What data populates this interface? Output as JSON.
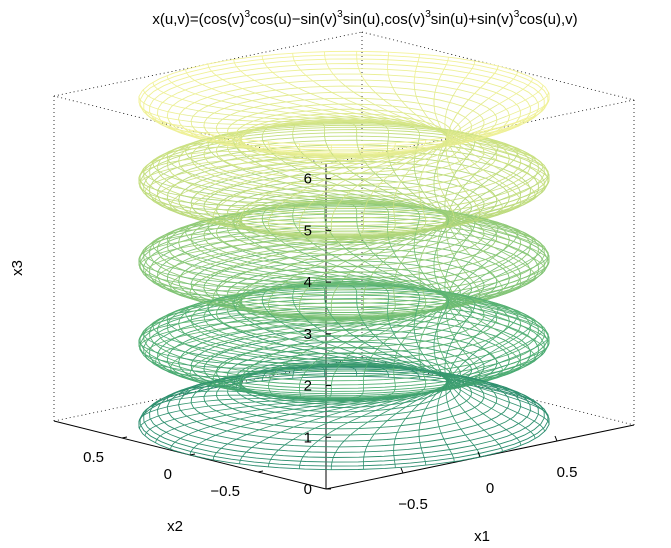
{
  "chart_data": {
    "type": "surface-mesh",
    "title": {
      "parts": [
        {
          "t": "x(u,v)=(cos(v)",
          "sup": false
        },
        {
          "t": "3",
          "sup": true
        },
        {
          "t": "cos(u)−sin(v)",
          "sup": false
        },
        {
          "t": "3",
          "sup": true
        },
        {
          "t": "sin(u),cos(v)",
          "sup": false
        },
        {
          "t": "3",
          "sup": true
        },
        {
          "t": "sin(u)+sin(v)",
          "sup": false
        },
        {
          "t": "3",
          "sup": true
        },
        {
          "t": "cos(u),v)",
          "sup": false
        }
      ]
    },
    "xlabel": "x1",
    "ylabel": "x2",
    "zlabel": "x3",
    "xlim": [
      -1,
      1
    ],
    "ylim": [
      -1,
      1
    ],
    "zlim": [
      0,
      6.2832
    ],
    "z_ticks": [
      "0",
      "1",
      "2",
      "3",
      "4",
      "5",
      "6"
    ],
    "x_ticks": [
      "−0.5",
      "0",
      "0.5"
    ],
    "y_ticks": [
      "−0.5",
      "0",
      "0.5"
    ],
    "u_range": [
      0,
      6.2832
    ],
    "v_range": [
      0,
      6.2832
    ],
    "colormap": [
      "#2a8c6e",
      "#4fae72",
      "#88c777",
      "#c4de7f",
      "#f4f39a"
    ],
    "grid": "dotted box edges",
    "view": "azimuth -37.5, elevation 30"
  }
}
